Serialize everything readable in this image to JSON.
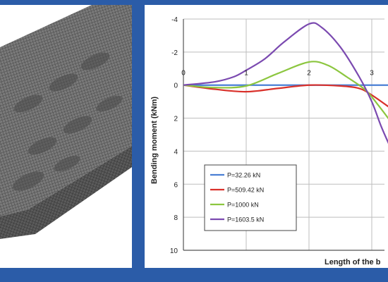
{
  "colors": {
    "frame": "#2b5ca8",
    "grid": "#bdbdbd",
    "axis": "#555555"
  },
  "mesh_figure": {
    "description_icon": "fe-mesh-model-image"
  },
  "chart_data": {
    "type": "line",
    "title": "",
    "xlabel": "Length of the b",
    "ylabel": "Bending moment (kNm)",
    "xlim": [
      0,
      3.3
    ],
    "ylim": [
      -4,
      10
    ],
    "y_inverted": true,
    "grid": true,
    "legend_position": "bottom-left",
    "x_ticks": [
      "0",
      "1",
      "2",
      "3"
    ],
    "x_tick_values": [
      0,
      1,
      2,
      3
    ],
    "y_ticks": [
      "-4",
      "-2",
      "0",
      "2",
      "4",
      "6",
      "8",
      "10"
    ],
    "y_tick_values": [
      -4,
      -2,
      0,
      2,
      4,
      6,
      8,
      10
    ],
    "series": [
      {
        "name": "P=32.26 kN",
        "color": "#4a7fd4",
        "x": [
          0,
          0.5,
          1,
          1.5,
          2,
          2.5,
          3,
          3.3
        ],
        "y": [
          0,
          0,
          0,
          0,
          0,
          0,
          0,
          0
        ]
      },
      {
        "name": "P=509.42 kN",
        "color": "#d9302a",
        "x": [
          0,
          0.5,
          1,
          1.5,
          2,
          2.5,
          2.8,
          3,
          3.3
        ],
        "y": [
          0,
          0.25,
          0.4,
          0.2,
          0,
          0.05,
          0.2,
          0.6,
          1.4
        ]
      },
      {
        "name": "P=1000 kN",
        "color": "#8cc63f",
        "x": [
          0,
          0.5,
          1,
          1.5,
          2,
          2.3,
          2.6,
          2.9,
          3.1,
          3.3
        ],
        "y": [
          0,
          0.15,
          0.05,
          -0.7,
          -1.4,
          -1.2,
          -0.5,
          0.3,
          1.2,
          2.2
        ]
      },
      {
        "name": "P=1603.5 kN",
        "color": "#7b4ab0",
        "x": [
          0,
          0.5,
          0.8,
          1,
          1.3,
          1.6,
          2,
          2.2,
          2.5,
          2.8,
          3,
          3.15,
          3.3
        ],
        "y": [
          0,
          -0.2,
          -0.5,
          -0.9,
          -1.6,
          -2.6,
          -3.7,
          -3.5,
          -2.3,
          -0.5,
          1.0,
          2.5,
          3.8
        ]
      }
    ]
  }
}
